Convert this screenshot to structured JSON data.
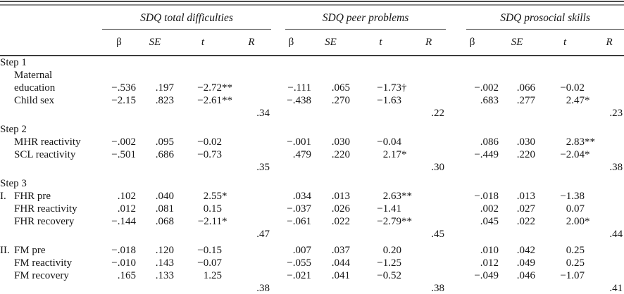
{
  "table": {
    "groups": [
      {
        "title": "SDQ total difficulties"
      },
      {
        "title": "SDQ peer problems"
      },
      {
        "title": "SDQ prosocial skills"
      }
    ],
    "subheaders": {
      "beta": "β",
      "se": "SE",
      "t": "t",
      "r": "R"
    },
    "rows": [
      {
        "type": "section",
        "label": "Step 1"
      },
      {
        "type": "data",
        "prefix": "",
        "label": "Maternal education",
        "cells": [
          "−.536",
          ".197",
          "−2.72**",
          "−.111",
          ".065",
          "−1.73†",
          "−.002",
          ".066",
          "−0.02"
        ]
      },
      {
        "type": "data",
        "prefix": "",
        "label": "Child sex",
        "cells": [
          "−2.15",
          ".823",
          "−2.61**",
          "−.438",
          ".270",
          "−1.63",
          ".683",
          ".277",
          "2.47*"
        ]
      },
      {
        "type": "r",
        "values": [
          ".34",
          ".22",
          ".23"
        ]
      },
      {
        "type": "section",
        "label": "Step 2",
        "gap": true
      },
      {
        "type": "data",
        "prefix": "",
        "label": "MHR reactivity",
        "cells": [
          "−.002",
          ".095",
          "−0.02",
          "−.001",
          ".030",
          "−0.04",
          ".086",
          ".030",
          "2.83**"
        ]
      },
      {
        "type": "data",
        "prefix": "",
        "label": "SCL reactivity",
        "cells": [
          "−.501",
          ".686",
          "−0.73",
          ".479",
          ".220",
          "2.17*",
          "−.449",
          ".220",
          "−2.04*"
        ]
      },
      {
        "type": "r",
        "values": [
          ".35",
          ".30",
          ".38"
        ]
      },
      {
        "type": "section",
        "label": "Step 3",
        "gap": true
      },
      {
        "type": "data",
        "prefix": "I.",
        "label": "FHR pre",
        "cells": [
          ".102",
          ".040",
          "2.55*",
          ".034",
          ".013",
          "2.63**",
          "−.018",
          ".013",
          "−1.38"
        ]
      },
      {
        "type": "data",
        "prefix": "",
        "label": "FHR reactivity",
        "cells": [
          ".012",
          ".081",
          "0.15",
          "−.037",
          ".026",
          "−1.41",
          ".002",
          ".027",
          "0.07"
        ]
      },
      {
        "type": "data",
        "prefix": "",
        "label": "FHR recovery",
        "cells": [
          "−.144",
          ".068",
          "−2.11*",
          "−.061",
          ".022",
          "−2.79**",
          ".045",
          ".022",
          "2.00*"
        ]
      },
      {
        "type": "r",
        "values": [
          ".47",
          ".45",
          ".44"
        ]
      },
      {
        "type": "data",
        "prefix": "II.",
        "label": "FM pre",
        "gap": true,
        "cells": [
          "−.018",
          ".120",
          "−0.15",
          ".007",
          ".037",
          "0.20",
          ".010",
          ".042",
          "0.25"
        ]
      },
      {
        "type": "data",
        "prefix": "",
        "label": "FM reactivity",
        "cells": [
          "−.010",
          ".143",
          "−0.07",
          "−.055",
          ".044",
          "−1.25",
          ".012",
          ".049",
          "0.25"
        ]
      },
      {
        "type": "data",
        "prefix": "",
        "label": "FM recovery",
        "cells": [
          ".165",
          ".133",
          "1.25",
          "−.021",
          ".041",
          "−0.52",
          "−.049",
          ".046",
          "−1.07"
        ]
      },
      {
        "type": "r",
        "values": [
          ".38",
          ".38",
          ".41"
        ]
      }
    ]
  }
}
